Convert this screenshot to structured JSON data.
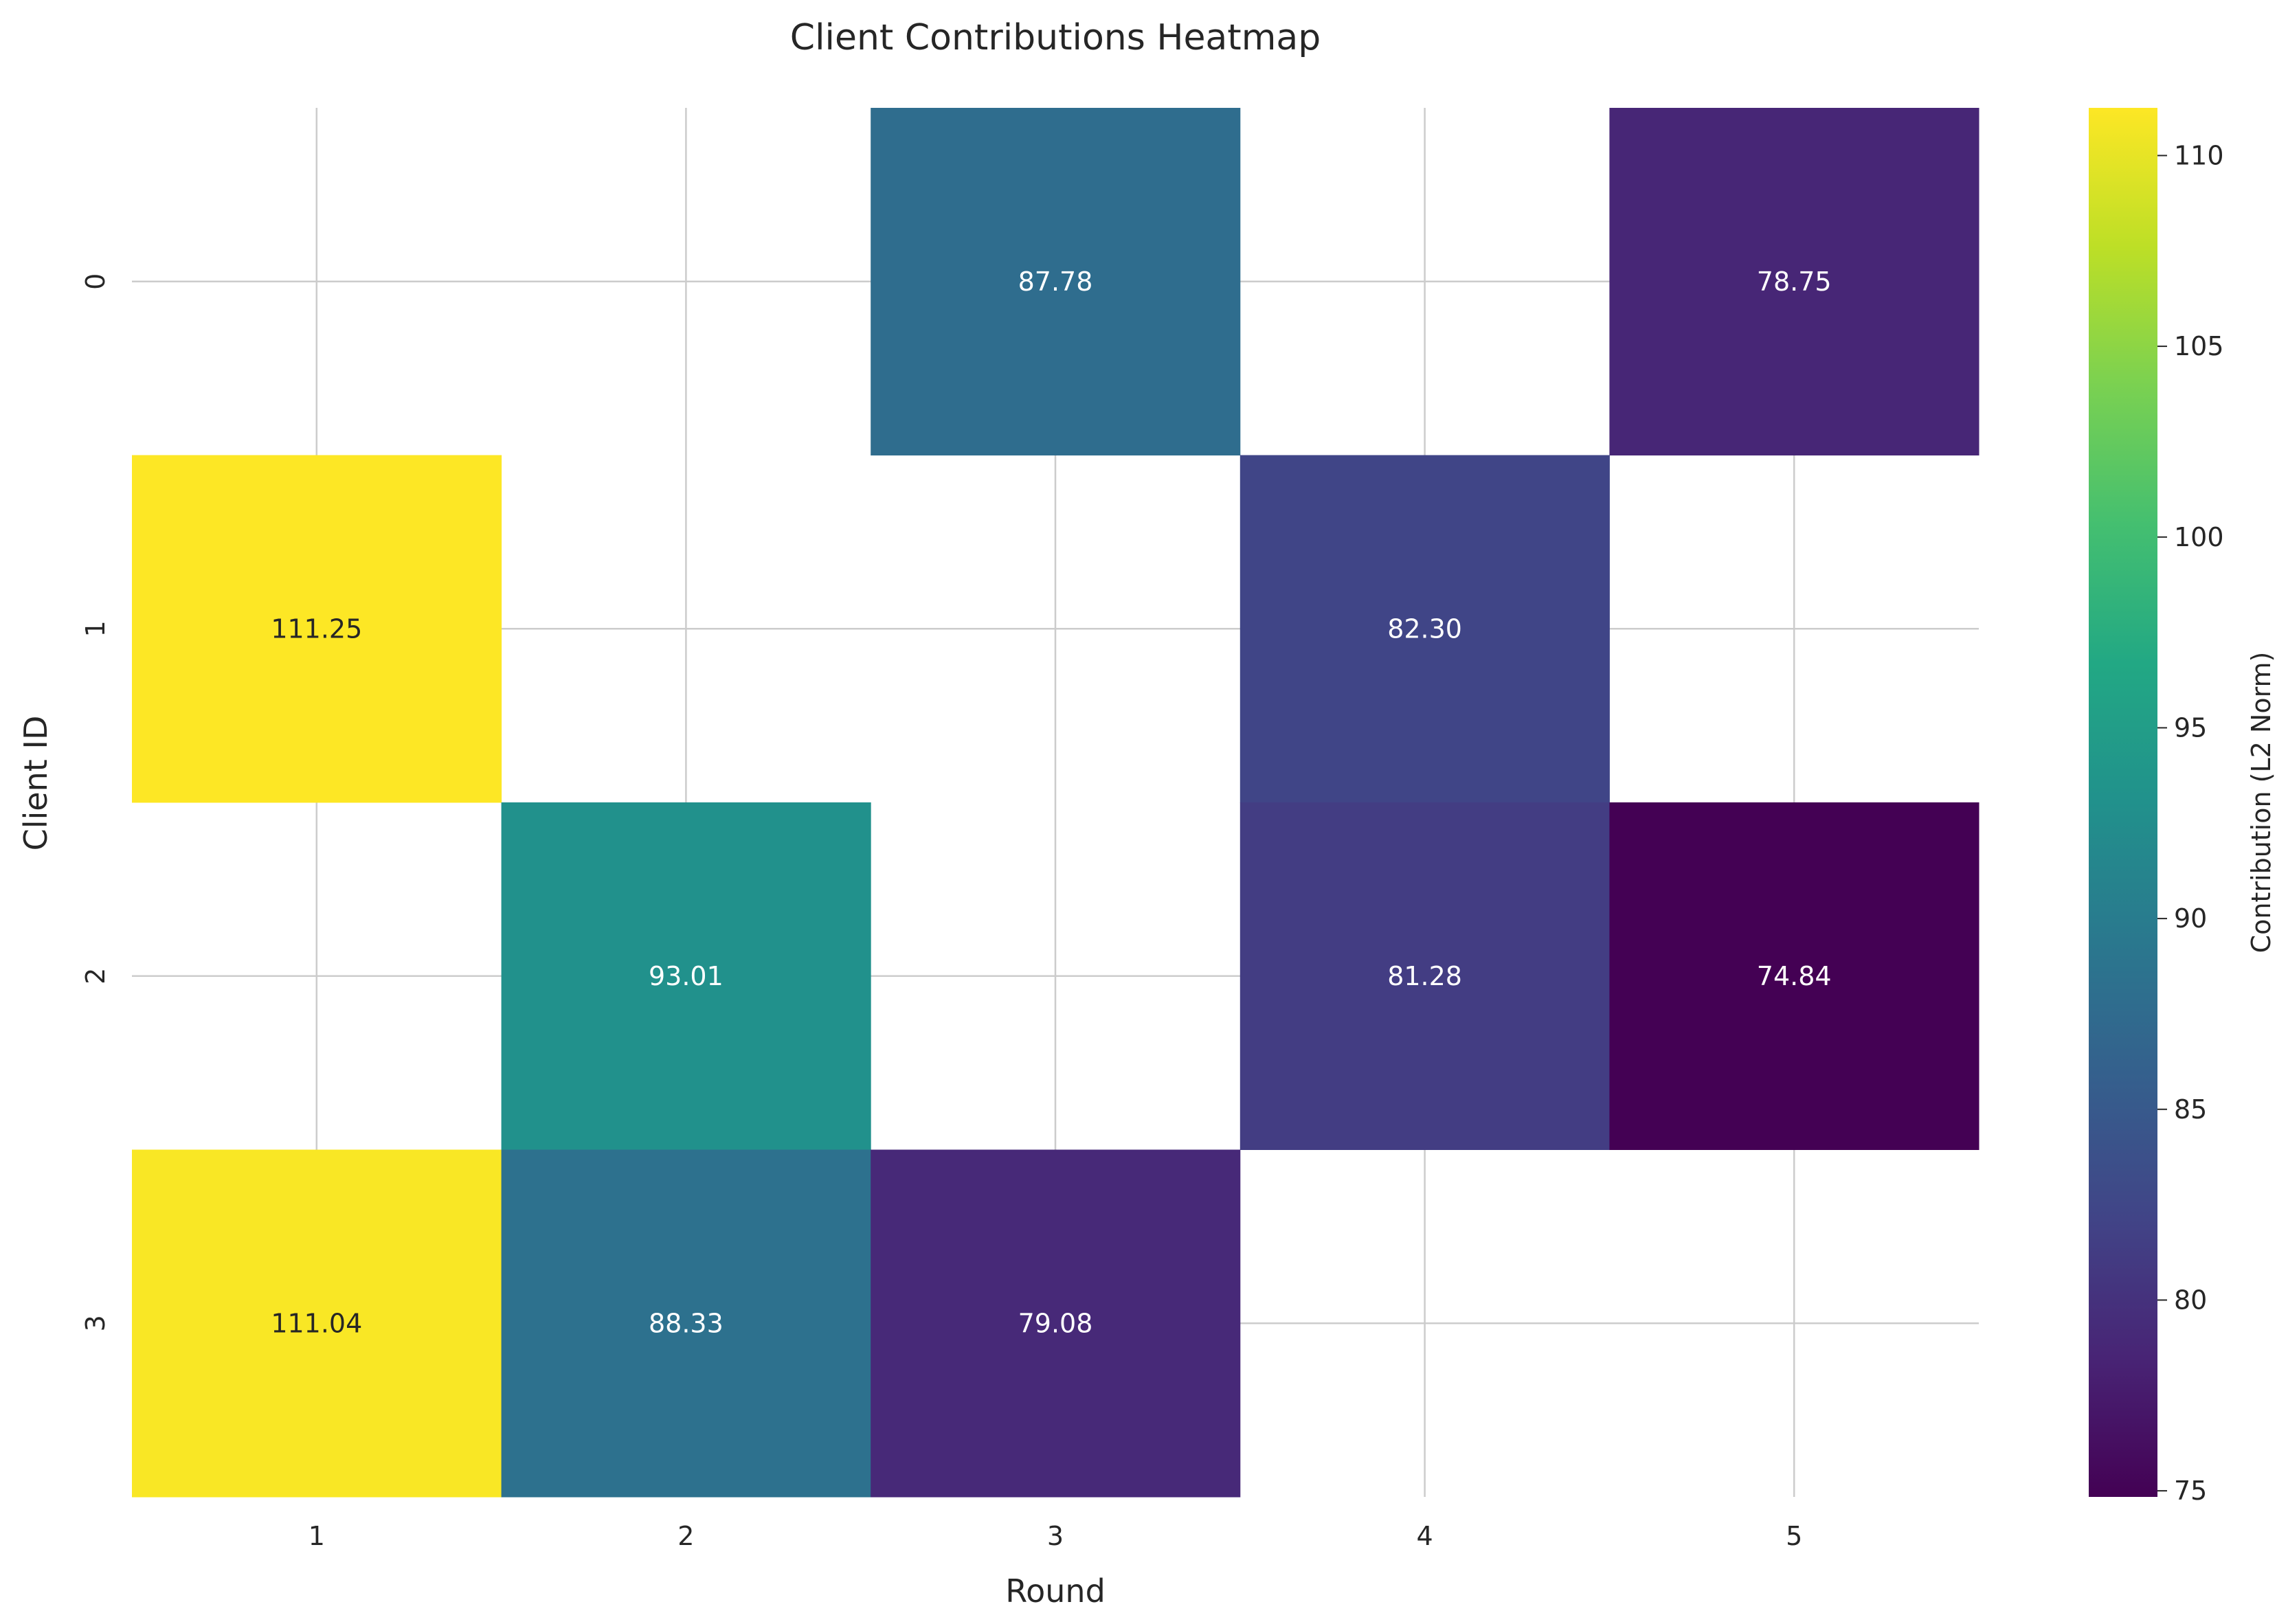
{
  "chart_data": {
    "type": "heatmap",
    "title": "Client Contributions Heatmap",
    "xlabel": "Round",
    "ylabel": "Client ID",
    "x_categories": [
      "1",
      "2",
      "3",
      "4",
      "5"
    ],
    "y_categories": [
      "0",
      "1",
      "2",
      "3"
    ],
    "values": [
      [
        null,
        null,
        87.78,
        null,
        78.75
      ],
      [
        111.25,
        null,
        null,
        82.3,
        null
      ],
      [
        null,
        93.01,
        null,
        81.28,
        74.84
      ],
      [
        111.04,
        88.33,
        79.08,
        null,
        null
      ]
    ],
    "value_labels": [
      [
        null,
        null,
        "87.78",
        null,
        "78.75"
      ],
      [
        "111.25",
        null,
        null,
        "82.30",
        null
      ],
      [
        null,
        "93.01",
        null,
        "81.28",
        "74.84"
      ],
      [
        "111.04",
        "88.33",
        "79.08",
        null,
        null
      ]
    ],
    "colormap": "viridis",
    "colorbar": {
      "label": "Contribution (L2 Norm)",
      "range": [
        74.84,
        111.25
      ],
      "ticks": [
        75,
        80,
        85,
        90,
        95,
        100,
        105,
        110
      ],
      "tick_labels": [
        "75",
        "80",
        "85",
        "90",
        "95",
        "100",
        "105",
        "110"
      ]
    },
    "grid": true
  }
}
